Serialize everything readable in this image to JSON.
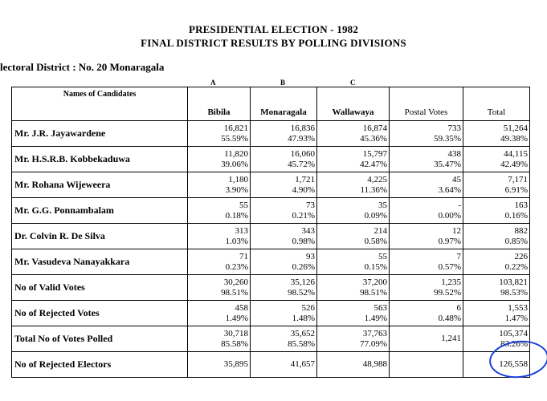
{
  "header": {
    "title": "PRESIDENTIAL ELECTION - 1982",
    "subtitle": "FINAL DISTRICT RESULTS BY POLLING DIVISIONS",
    "district": "lectoral District : No. 20 Monaragala"
  },
  "column_letters": [
    "A",
    "B",
    "C"
  ],
  "table": {
    "name_header": "Names of Candidates",
    "columns": [
      "Bibila",
      "Monaragala",
      "Wallawaya",
      "Postal Votes",
      "Total"
    ],
    "rows": [
      {
        "label": "Mr. J.R. Jayawardene",
        "cells": [
          [
            "16,821",
            "55.59%"
          ],
          [
            "16,836",
            "47.93%"
          ],
          [
            "16,874",
            "45.36%"
          ],
          [
            "733",
            "59.35%"
          ],
          [
            "51,264",
            "49.38%"
          ]
        ]
      },
      {
        "label": "Mr. H.S.R.B. Kobbekaduwa",
        "cells": [
          [
            "11,820",
            "39.06%"
          ],
          [
            "16,060",
            "45.72%"
          ],
          [
            "15,797",
            "42.47%"
          ],
          [
            "438",
            "35.47%"
          ],
          [
            "44,115",
            "42.49%"
          ]
        ]
      },
      {
        "label": "Mr. Rohana Wijeweera",
        "cells": [
          [
            "1,180",
            "3.90%"
          ],
          [
            "1,721",
            "4.90%"
          ],
          [
            "4,225",
            "11.36%"
          ],
          [
            "45",
            "3.64%"
          ],
          [
            "7,171",
            "6.91%"
          ]
        ]
      },
      {
        "label": "Mr. G.G. Ponnambalam",
        "cells": [
          [
            "55",
            "0.18%"
          ],
          [
            "73",
            "0.21%"
          ],
          [
            "35",
            "0.09%"
          ],
          [
            "-",
            "0.00%"
          ],
          [
            "163",
            "0.16%"
          ]
        ]
      },
      {
        "label": "Dr. Colvin R. De Silva",
        "cells": [
          [
            "313",
            "1.03%"
          ],
          [
            "343",
            "0.98%"
          ],
          [
            "214",
            "0.58%"
          ],
          [
            "12",
            "0.97%"
          ],
          [
            "882",
            "0.85%"
          ]
        ]
      },
      {
        "label": "Mr. Vasudeva Nanayakkara",
        "cells": [
          [
            "71",
            "0.23%"
          ],
          [
            "93",
            "0.26%"
          ],
          [
            "55",
            "0.15%"
          ],
          [
            "7",
            "0.57%"
          ],
          [
            "226",
            "0.22%"
          ]
        ]
      },
      {
        "label": "No of Valid Votes",
        "cells": [
          [
            "30,260",
            "98.51%"
          ],
          [
            "35,126",
            "98.52%"
          ],
          [
            "37,200",
            "98.51%"
          ],
          [
            "1,235",
            "99.52%"
          ],
          [
            "103,821",
            "98.53%"
          ]
        ]
      },
      {
        "label": "No of Rejected Votes",
        "cells": [
          [
            "458",
            "1.49%"
          ],
          [
            "526",
            "1.48%"
          ],
          [
            "563",
            "1.49%"
          ],
          [
            "6",
            "0.48%"
          ],
          [
            "1,553",
            "1.47%"
          ]
        ]
      },
      {
        "label": "Total No of Votes Polled",
        "cells": [
          [
            "30,718",
            "85.58%"
          ],
          [
            "35,652",
            "85.58%"
          ],
          [
            "37,763",
            "77.09%"
          ],
          [
            "1,241",
            ""
          ],
          [
            "105,374",
            "83.26%"
          ]
        ]
      },
      {
        "label": "No of Rejected Electors",
        "cells": [
          [
            "35,895",
            ""
          ],
          [
            "41,657",
            ""
          ],
          [
            "48,988",
            ""
          ],
          [
            "",
            ""
          ],
          [
            "126,558",
            ""
          ]
        ]
      }
    ]
  },
  "annotation": {
    "color": "#1a3fd6",
    "shape": "hand-drawn circle around final total"
  }
}
